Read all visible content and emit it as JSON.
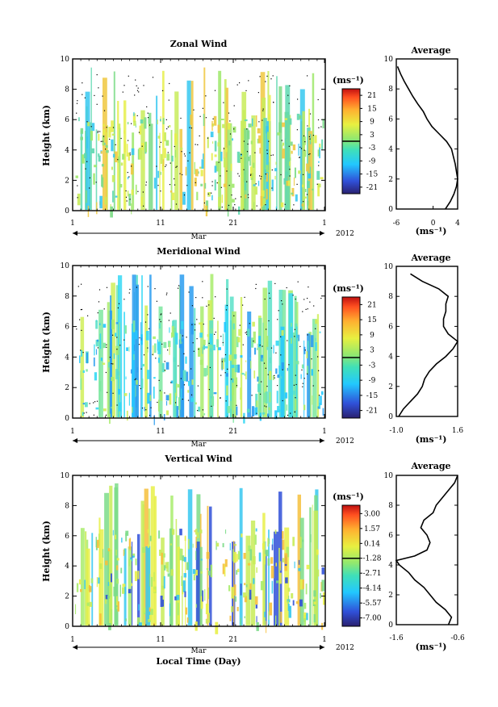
{
  "xlabel": "Local Time (Day)",
  "month_label": "Mar",
  "year_label": "2012",
  "average_title": "Average",
  "unit_label": "(ms⁻¹)",
  "x_ticks": [
    "1",
    "11",
    "21",
    "1"
  ],
  "chart_data": [
    {
      "type": "heatmap",
      "title": "Zonal Wind",
      "ylabel": "Height (km)",
      "ylim": [
        0,
        10
      ],
      "y_ticks": [
        "0",
        "2",
        "4",
        "6",
        "8",
        "10"
      ],
      "colorbar_ticks": [
        "21",
        "15",
        "9",
        "3",
        "-3",
        "-9",
        "-15",
        "-21"
      ],
      "colorbar_range": [
        -24,
        24
      ],
      "zero_line_level": 0,
      "profile": {
        "xlim": [
          -6,
          4
        ],
        "x_ticks": [
          "-6",
          "0",
          "4"
        ],
        "height": [
          0,
          0.5,
          1,
          1.5,
          2,
          2.5,
          3,
          3.5,
          4,
          4.5,
          5,
          5.5,
          6,
          6.5,
          7,
          7.5,
          8,
          8.5,
          9,
          9.5
        ],
        "values": [
          2.0,
          2.8,
          3.4,
          3.8,
          4.0,
          3.8,
          3.6,
          3.3,
          3.0,
          2.2,
          1.0,
          -0.2,
          -1.0,
          -1.6,
          -2.5,
          -3.3,
          -4.0,
          -4.7,
          -5.3,
          -5.8
        ]
      }
    },
    {
      "type": "heatmap",
      "title": "Meridional Wind",
      "ylabel": "Height (km)",
      "ylim": [
        0,
        10
      ],
      "y_ticks": [
        "0",
        "2",
        "4",
        "6",
        "8",
        "10"
      ],
      "colorbar_ticks": [
        "21",
        "15",
        "9",
        "3",
        "-3",
        "-9",
        "-15",
        "-21"
      ],
      "colorbar_range": [
        -24,
        24
      ],
      "zero_line_level": 0,
      "profile": {
        "xlim": [
          -1.0,
          1.6
        ],
        "x_ticks": [
          "-1.0",
          "1.6"
        ],
        "height": [
          0,
          0.5,
          1,
          1.5,
          2,
          2.5,
          3,
          3.5,
          4,
          4.5,
          5,
          5.5,
          6,
          6.5,
          7,
          7.5,
          8,
          8.5,
          9,
          9.5
        ],
        "values": [
          -0.9,
          -0.7,
          -0.4,
          -0.1,
          0.1,
          0.2,
          0.4,
          0.7,
          1.1,
          1.4,
          1.6,
          1.2,
          1.0,
          1.0,
          1.1,
          1.1,
          1.2,
          0.8,
          0.1,
          -0.4
        ]
      }
    },
    {
      "type": "heatmap",
      "title": "Vertical Wind",
      "ylabel": "Height (km)",
      "ylim": [
        0,
        10
      ],
      "y_ticks": [
        "0",
        "2",
        "4",
        "6",
        "8",
        "10"
      ],
      "colorbar_ticks": [
        "3.00",
        "1.57",
        "0.14",
        "-1.28",
        "-2.71",
        "-4.14",
        "-5.57",
        "-7.00"
      ],
      "colorbar_range": [
        -7.8,
        3.8
      ],
      "zero_line_level": -1.28,
      "profile": {
        "xlim": [
          -1.6,
          -0.6
        ],
        "x_ticks": [
          "-1.6",
          "-0.6"
        ],
        "height": [
          0,
          0.5,
          1,
          1.5,
          2,
          2.5,
          3,
          3.5,
          4,
          4.3,
          4.6,
          5,
          5.5,
          6,
          6.5,
          7,
          7.5,
          8,
          8.5,
          9,
          9.5,
          10
        ],
        "values": [
          -0.75,
          -0.7,
          -0.8,
          -0.95,
          -1.05,
          -1.15,
          -1.3,
          -1.4,
          -1.55,
          -1.6,
          -1.3,
          -1.1,
          -1.05,
          -1.1,
          -1.2,
          -1.15,
          -1.0,
          -0.95,
          -0.85,
          -0.75,
          -0.65,
          -0.6
        ]
      }
    }
  ]
}
